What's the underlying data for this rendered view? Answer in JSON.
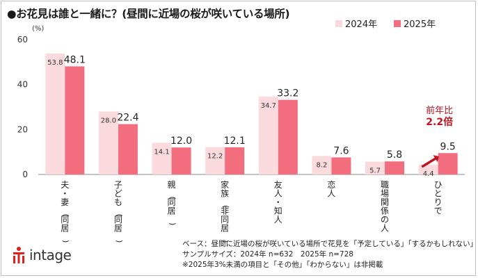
{
  "title": "●お花見は誰と一緒に？(昼間に近場の桜が咲いている場所)",
  "chart_data": {
    "type": "bar",
    "ylabel": "(%)",
    "ylim": [
      0,
      60
    ],
    "yticks": [
      0,
      20,
      40,
      60
    ],
    "grid": false,
    "legend": "top-right",
    "categories": [
      "夫・妻(同居)",
      "子ども(同居)",
      "親(同居)",
      "家族(非同居)",
      "友人・知人",
      "恋人",
      "職場関係の人",
      "ひとりで"
    ],
    "series": [
      {
        "name": "2024年",
        "color": "#fadadd",
        "values": [
          53.8,
          28.0,
          14.1,
          12.2,
          34.7,
          8.2,
          5.7,
          4.4
        ]
      },
      {
        "name": "2025年",
        "color": "#f26d7d",
        "values": [
          48.1,
          22.4,
          12.0,
          12.1,
          33.2,
          7.6,
          5.8,
          9.5
        ]
      }
    ],
    "annotation": {
      "line1": "前年比",
      "line2": "2.2倍",
      "category": "ひとりで",
      "color": "#c0121f"
    }
  },
  "notes": [
    "ベース：昼間に近場の桜が咲いている場所で花見を「予定している」「するかもしれない」計",
    "サンプルサイズ：2024年 n=632　2025年 n=728",
    "※2025年3%未満の項目と「その他」「わからない」は非掲載"
  ],
  "logo": {
    "text": "intage",
    "icon": "intage-logo-icon"
  }
}
